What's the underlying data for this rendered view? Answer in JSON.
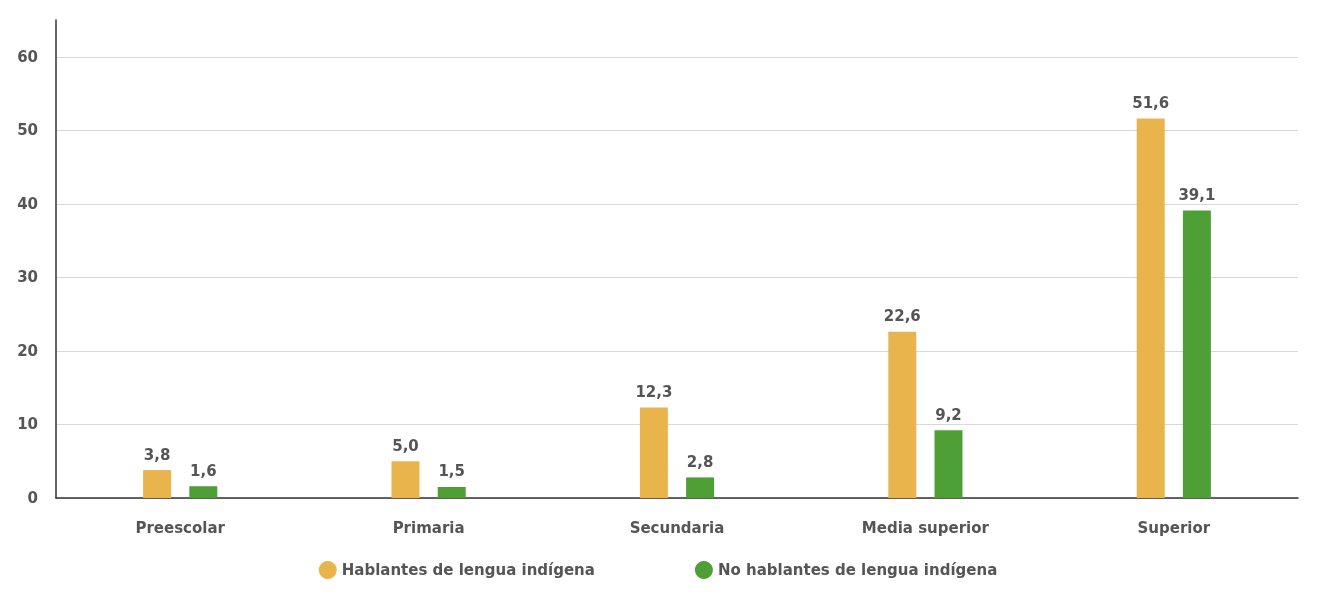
{
  "chart_data": {
    "type": "bar",
    "categories": [
      "Preescolar",
      "Primaria",
      "Secundaria",
      "Media superior",
      "Superior"
    ],
    "series": [
      {
        "name": "Hablantes de lengua indígena",
        "color": "#e9b44c",
        "values": [
          3.8,
          5.0,
          12.3,
          22.6,
          51.6
        ],
        "value_labels": [
          "3,8",
          "5,0",
          "12,3",
          "22,6",
          "51,6"
        ]
      },
      {
        "name": "No hablantes de lengua indígena",
        "color": "#4e9f36",
        "values": [
          1.6,
          1.5,
          2.8,
          9.2,
          39.1
        ],
        "value_labels": [
          "1,6",
          "1,5",
          "2,8",
          "9,2",
          "39,1"
        ]
      }
    ],
    "ylim": [
      0,
      65
    ],
    "yticks": [
      0,
      10,
      20,
      30,
      40,
      50,
      60
    ],
    "grid": "y",
    "legend": "bottom"
  }
}
